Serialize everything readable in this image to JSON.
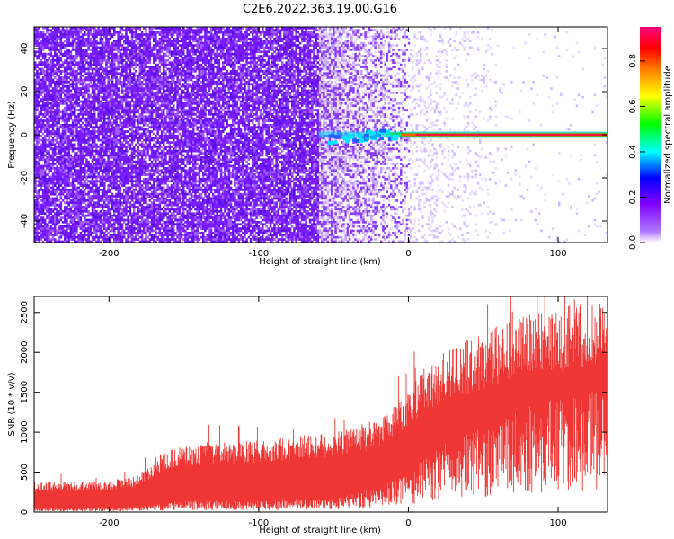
{
  "chart_data": [
    {
      "type": "heatmap",
      "title": "C2E6.2022.363.19.00.G16",
      "xlabel": "Height of straight line (km)",
      "ylabel": "Frequency (Hz)",
      "xlim": [
        -250,
        133
      ],
      "ylim": [
        -50,
        50
      ],
      "x_ticks": [
        -200,
        -100,
        0,
        100
      ],
      "y_ticks": [
        -40,
        -20,
        0,
        20,
        40
      ],
      "colorbar": {
        "label": "Normalized spectral amplitude",
        "range": [
          0,
          0.95
        ],
        "ticks": [
          "0.0",
          "0.2",
          "0.4",
          "0.6",
          "0.8"
        ],
        "colors": [
          "#ffffff",
          "#7f00ff",
          "#0000ff",
          "#00ffff",
          "#00ff00",
          "#ffff00",
          "#ff8000",
          "#ff0000",
          "#ff0080"
        ]
      },
      "features": [
        {
          "desc": "broadband noise amplitude ~0.25",
          "x_range": [
            -250,
            0
          ],
          "y_range": [
            -50,
            50
          ]
        },
        {
          "desc": "coherent line amplitude 0.8-0.9",
          "x_range": [
            -60,
            133
          ],
          "y_center": 0,
          "y_halfwidth": 1.5
        }
      ],
      "grid": false
    },
    {
      "type": "area",
      "xlabel": "Height of straight line (km)",
      "ylabel": "SNR (10 * v/v)",
      "xlim": [
        -250,
        133
      ],
      "ylim": [
        0,
        2700
      ],
      "x_ticks": [
        -200,
        -100,
        0,
        100
      ],
      "y_ticks": [
        0,
        500,
        1000,
        1500,
        2000,
        2500
      ],
      "series": [
        {
          "color": "#f03535",
          "x": [
            -250,
            -200,
            -180,
            -165,
            -150,
            -100,
            -50,
            -20,
            0,
            20,
            50,
            80,
            100,
            133
          ],
          "upper": [
            340,
            360,
            430,
            680,
            760,
            820,
            920,
            1050,
            1450,
            1800,
            2050,
            2250,
            2350,
            2450
          ],
          "lower": [
            40,
            40,
            60,
            90,
            120,
            120,
            150,
            250,
            420,
            700,
            900,
            1100,
            1200,
            1300
          ]
        }
      ],
      "grid": false
    }
  ]
}
